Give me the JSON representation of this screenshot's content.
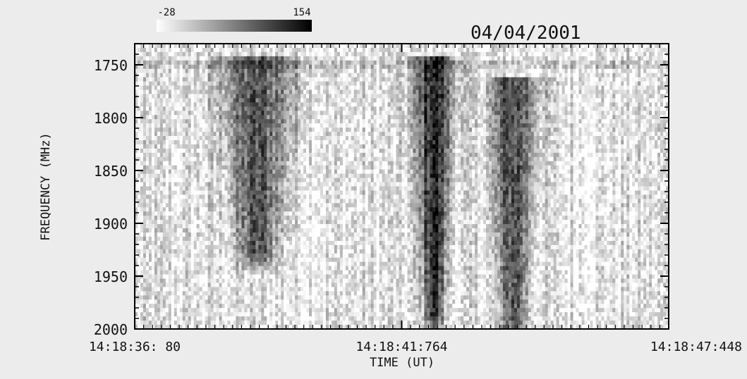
{
  "chart_data": {
    "type": "heatmap",
    "title": "",
    "date": "04/04/2001",
    "xlabel": "TIME (UT)",
    "ylabel": "FREQUENCY (MHz)",
    "x_ticks": [
      "14:18:36: 80",
      "14:18:41:764",
      "14:18:47:448"
    ],
    "y_ticks": [
      1750,
      1800,
      1850,
      1900,
      1950,
      2000
    ],
    "ylim": [
      1730,
      2000
    ],
    "y_inverted": true,
    "colorbar": {
      "min_label": "-28",
      "max_label": "154",
      "min_value": -28,
      "max_value": 154,
      "low_color": "#ffffff",
      "high_color": "#000000"
    },
    "features": [
      {
        "type": "broadband-burst",
        "time_center_fraction": 0.23,
        "width_fraction": 0.1,
        "freq_top": 1740,
        "freq_bottom": 1930,
        "peak": 0.55
      },
      {
        "type": "broadband-burst",
        "time_center_fraction": 0.56,
        "width_fraction": 0.05,
        "freq_top": 1740,
        "freq_bottom": 1990,
        "peak": 0.75
      },
      {
        "type": "broadband-burst",
        "time_center_fraction": 0.71,
        "width_fraction": 0.06,
        "freq_top": 1760,
        "freq_bottom": 2000,
        "peak": 0.6
      }
    ]
  }
}
